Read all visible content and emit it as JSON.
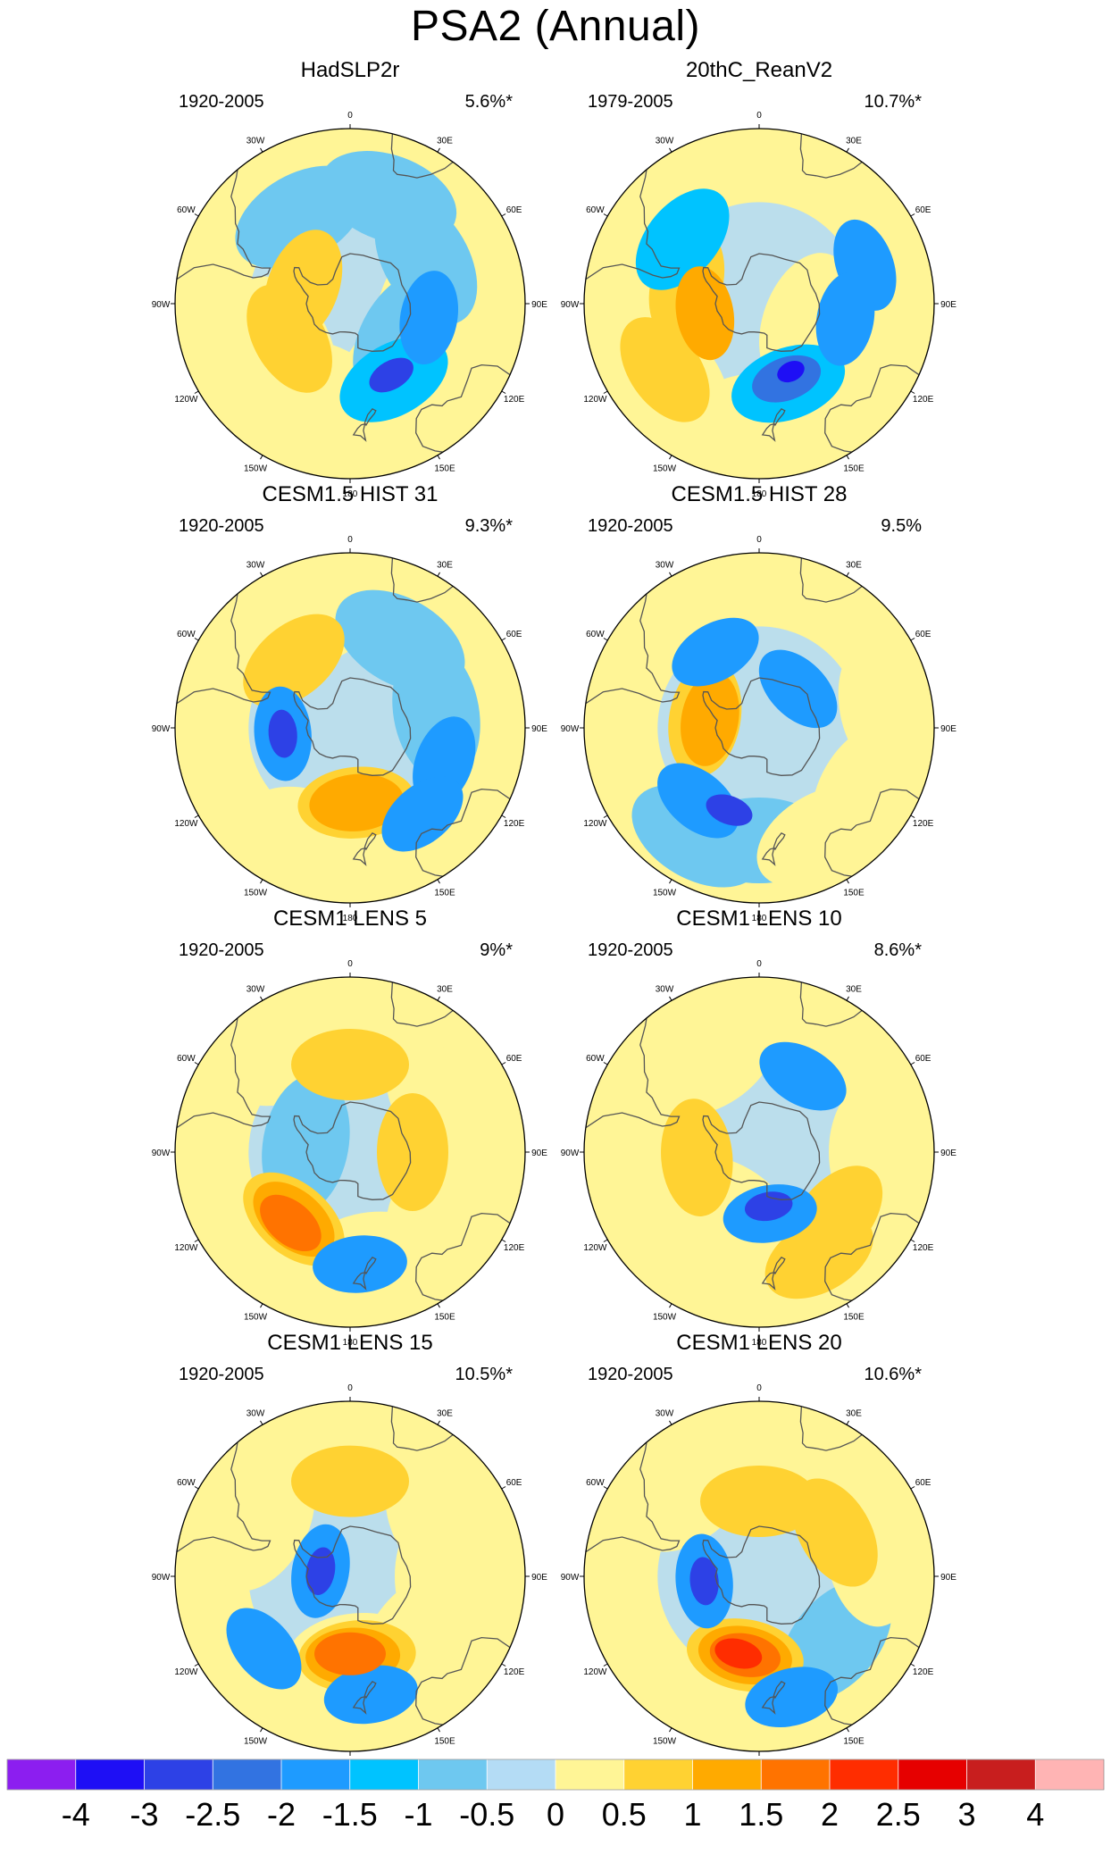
{
  "title": "PSA2 (Annual)",
  "lon_labels": [
    "0",
    "30E",
    "60E",
    "90E",
    "120E",
    "150E",
    "180",
    "150W",
    "120W",
    "90W",
    "60W",
    "30W"
  ],
  "colorbar": {
    "labels": [
      "-4",
      "-3",
      "-2.5",
      "-2",
      "-1.5",
      "-1",
      "-0.5",
      "0",
      "0.5",
      "1",
      "1.5",
      "2",
      "2.5",
      "3",
      "4"
    ],
    "colors": [
      "#8c1ef0",
      "#1e0ff5",
      "#2d41e6",
      "#3273e1",
      "#1e9bff",
      "#00c3ff",
      "#6ec8f0",
      "#b4dcf5",
      "#fff596",
      "#ffd232",
      "#ffaa00",
      "#ff7300",
      "#ff2d00",
      "#e60000",
      "#c81e1e",
      "#ffb4b4"
    ]
  },
  "chart_data": [
    {
      "type": "heatmap",
      "title": "HadSLP2r",
      "period": "1920-2005",
      "variance": "5.6%*",
      "blobs": [
        {
          "lon": 180,
          "lat": -50,
          "level": 1
        },
        {
          "lon": 140,
          "lat": -60,
          "level": 1
        },
        {
          "lon": 100,
          "lat": -62,
          "level": 1
        },
        {
          "lon": -160,
          "lat": -55,
          "level": 1
        },
        {
          "lon": -30,
          "lat": -50,
          "level": -1
        },
        {
          "lon": 150,
          "lat": -55,
          "level": -2
        },
        {
          "lon": 150,
          "lat": -57,
          "level": -5
        },
        {
          "lon": -120,
          "lat": -62,
          "level": 2
        },
        {
          "lon": -70,
          "lat": -70,
          "level": 2
        },
        {
          "lon": -120,
          "lat": -60,
          "level": 1
        },
        {
          "lon": 20,
          "lat": -45,
          "level": -1
        },
        {
          "lon": 60,
          "lat": -55,
          "level": -1
        },
        {
          "lon": 100,
          "lat": -58,
          "level": -3
        },
        {
          "lon": 120,
          "lat": -65,
          "level": -1
        }
      ]
    },
    {
      "type": "heatmap",
      "title": "20thC_ReanV2",
      "period": "1979-2005",
      "variance": "10.7%*",
      "blobs": [
        {
          "lon": 180,
          "lat": -45,
          "level": 1
        },
        {
          "lon": -130,
          "lat": -45,
          "level": 1
        },
        {
          "lon": -60,
          "lat": -45,
          "level": 1
        },
        {
          "lon": 160,
          "lat": -56,
          "level": -2
        },
        {
          "lon": 160,
          "lat": -58,
          "level": -4
        },
        {
          "lon": 155,
          "lat": -60,
          "level": -6
        },
        {
          "lon": -100,
          "lat": -68,
          "level": 3
        },
        {
          "lon": -75,
          "lat": -60,
          "level": 2
        },
        {
          "lon": -125,
          "lat": -44,
          "level": 2
        },
        {
          "lon": -50,
          "lat": -50,
          "level": -2
        },
        {
          "lon": 70,
          "lat": -45,
          "level": -3
        },
        {
          "lon": 100,
          "lat": -55,
          "level": -3
        },
        {
          "lon": 110,
          "lat": -70,
          "level": 1
        }
      ]
    },
    {
      "type": "heatmap",
      "title": "CESM1.5 HIST 31",
      "period": "1920-2005",
      "variance": "9.3%*",
      "blobs": [
        {
          "lon": -160,
          "lat": -45,
          "level": 1
        },
        {
          "lon": -20,
          "lat": -45,
          "level": 1
        },
        {
          "lon": -40,
          "lat": -55,
          "level": 2
        },
        {
          "lon": -95,
          "lat": -63,
          "level": -3
        },
        {
          "lon": -95,
          "lat": -63,
          "level": -5
        },
        {
          "lon": 175,
          "lat": -60,
          "level": 2
        },
        {
          "lon": 175,
          "lat": -60,
          "level": 3
        },
        {
          "lon": 110,
          "lat": -50,
          "level": -3
        },
        {
          "lon": 140,
          "lat": -45,
          "level": -3
        },
        {
          "lon": 80,
          "lat": -55,
          "level": -1
        },
        {
          "lon": 30,
          "lat": -50,
          "level": -1
        }
      ]
    },
    {
      "type": "heatmap",
      "title": "CESM1.5 HIST 28",
      "period": "1920-2005",
      "variance": "9.5%",
      "blobs": [
        {
          "lon": 180,
          "lat": -45,
          "level": -1
        },
        {
          "lon": -150,
          "lat": -40,
          "level": -1
        },
        {
          "lon": -80,
          "lat": -68,
          "level": 2
        },
        {
          "lon": -80,
          "lat": -70,
          "level": 3
        },
        {
          "lon": -140,
          "lat": -52,
          "level": -3
        },
        {
          "lon": -160,
          "lat": -55,
          "level": -5
        },
        {
          "lon": -30,
          "lat": -55,
          "level": -3
        },
        {
          "lon": 45,
          "lat": -68,
          "level": -3
        },
        {
          "lon": 120,
          "lat": -42,
          "level": 1
        },
        {
          "lon": 80,
          "lat": -40,
          "level": 1
        },
        {
          "lon": 150,
          "lat": -40,
          "level": 1
        }
      ]
    },
    {
      "type": "heatmap",
      "title": "CESM1 LENS 5",
      "period": "1920-2005",
      "variance": "9%*",
      "blobs": [
        {
          "lon": -140,
          "lat": -55,
          "level": 2
        },
        {
          "lon": -140,
          "lat": -55,
          "level": 3
        },
        {
          "lon": -140,
          "lat": -53,
          "level": 4
        },
        {
          "lon": 0,
          "lat": -55,
          "level": 2
        },
        {
          "lon": 90,
          "lat": -65,
          "level": 2
        },
        {
          "lon": 175,
          "lat": -45,
          "level": -3
        },
        {
          "lon": 120,
          "lat": -50,
          "level": 1
        },
        {
          "lon": -30,
          "lat": -45,
          "level": 1
        },
        {
          "lon": 170,
          "lat": -48,
          "level": 1
        },
        {
          "lon": -80,
          "lat": -72,
          "level": -1
        },
        {
          "lon": 60,
          "lat": -50,
          "level": 1
        }
      ]
    },
    {
      "type": "heatmap",
      "title": "CESM1 LENS 10",
      "period": "1920-2005",
      "variance": "8.6%*",
      "blobs": [
        {
          "lon": 170,
          "lat": -65,
          "level": -3
        },
        {
          "lon": 170,
          "lat": -68,
          "level": -5
        },
        {
          "lon": -95,
          "lat": -65,
          "level": 2
        },
        {
          "lon": 30,
          "lat": -55,
          "level": -3
        },
        {
          "lon": 150,
          "lat": -42,
          "level": 2
        },
        {
          "lon": 130,
          "lat": -50,
          "level": 2
        },
        {
          "lon": -160,
          "lat": -45,
          "level": 1
        },
        {
          "lon": -100,
          "lat": -45,
          "level": 1
        },
        {
          "lon": 90,
          "lat": -45,
          "level": 1
        },
        {
          "lon": -30,
          "lat": -50,
          "level": 1
        },
        {
          "lon": -150,
          "lat": -65,
          "level": 1
        }
      ]
    },
    {
      "type": "heatmap",
      "title": "CESM1 LENS 15",
      "period": "1920-2005",
      "variance": "10.5%*",
      "blobs": [
        {
          "lon": 175,
          "lat": -58,
          "level": 1
        },
        {
          "lon": 175,
          "lat": -58,
          "level": 2
        },
        {
          "lon": 178,
          "lat": -58,
          "level": 3
        },
        {
          "lon": 180,
          "lat": -59,
          "level": 4
        },
        {
          "lon": -80,
          "lat": -78,
          "level": -3
        },
        {
          "lon": -80,
          "lat": -78,
          "level": -5
        },
        {
          "lon": 170,
          "lat": -42,
          "level": -3
        },
        {
          "lon": -130,
          "lat": -45,
          "level": -3
        },
        {
          "lon": 0,
          "lat": -52,
          "level": 2
        },
        {
          "lon": 60,
          "lat": -50,
          "level": 1
        },
        {
          "lon": 90,
          "lat": -55,
          "level": 1
        },
        {
          "lon": -60,
          "lat": -50,
          "level": 1
        },
        {
          "lon": 130,
          "lat": -55,
          "level": 1
        }
      ]
    },
    {
      "type": "heatmap",
      "title": "CESM1 LENS 20",
      "period": "1920-2005",
      "variance": "10.6%*",
      "blobs": [
        {
          "lon": -170,
          "lat": -58,
          "level": 2
        },
        {
          "lon": -170,
          "lat": -58,
          "level": 3
        },
        {
          "lon": -170,
          "lat": -58,
          "level": 4
        },
        {
          "lon": -165,
          "lat": -58,
          "level": 5
        },
        {
          "lon": -95,
          "lat": -68,
          "level": -3
        },
        {
          "lon": -95,
          "lat": -68,
          "level": -5
        },
        {
          "lon": 165,
          "lat": -40,
          "level": -3
        },
        {
          "lon": 130,
          "lat": -50,
          "level": -1
        },
        {
          "lon": 0,
          "lat": -60,
          "level": 2
        },
        {
          "lon": 60,
          "lat": -55,
          "level": 2
        },
        {
          "lon": 80,
          "lat": -45,
          "level": 1
        },
        {
          "lon": -40,
          "lat": -48,
          "level": 1
        }
      ]
    }
  ]
}
